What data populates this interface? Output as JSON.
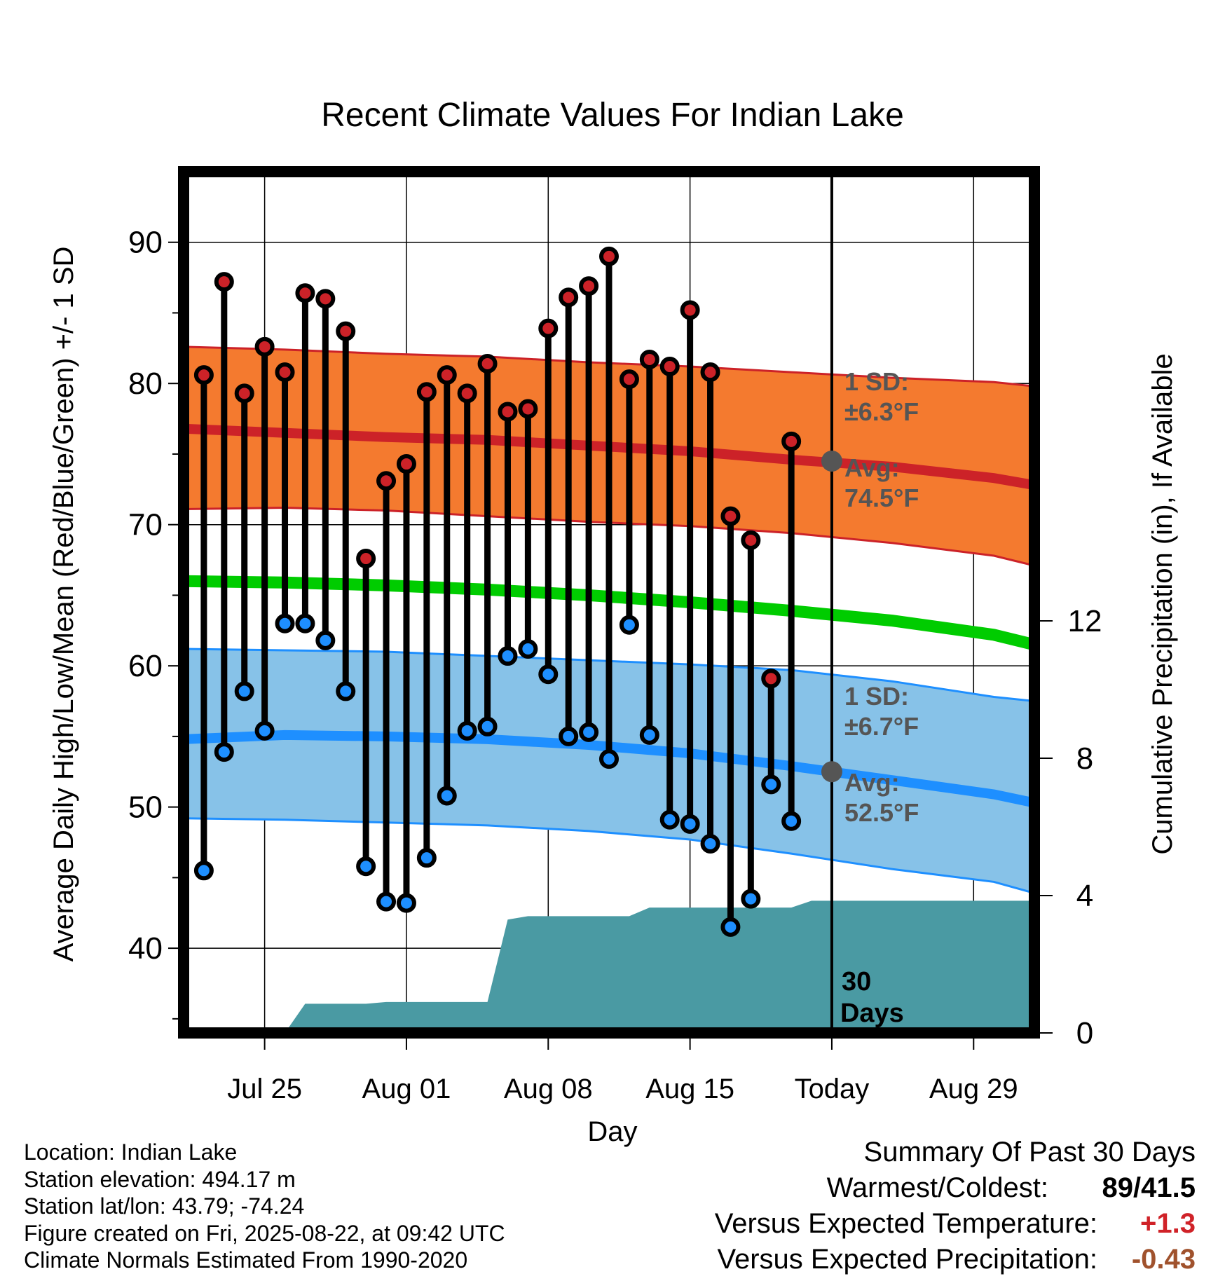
{
  "chart_data": {
    "type": "line",
    "title": "Recent Climate Values For Indian Lake",
    "xlabel": "Day",
    "ylabel": "Average Daily High/Low/Mean (Red/Blue/Green) +/- 1 SD",
    "y2label": "Cumulative Precipitation (in), If Available",
    "x_ticks": [
      "Jul 25",
      "Aug 01",
      "Aug 08",
      "Aug 15",
      "Today",
      "Aug 29"
    ],
    "x_range": [
      "2025-07-21",
      "2025-09-01"
    ],
    "ylim": [
      34,
      95
    ],
    "y_ticks": [
      40,
      50,
      60,
      70,
      80,
      90
    ],
    "y2_ticks": [
      0,
      4,
      8,
      12
    ],
    "today": "2025-08-22",
    "today_label": "30 Days",
    "grid": true,
    "colors": {
      "high": "#cc2228",
      "low": "#1e8fff",
      "mean": "#00cc00",
      "high_band": "#f47a2f",
      "low_band": "#87c2e8",
      "precip": "#4a9aa3",
      "avg_marker": "#555555"
    },
    "daily": {
      "dates": [
        "2025-07-22",
        "2025-07-23",
        "2025-07-24",
        "2025-07-25",
        "2025-07-26",
        "2025-07-27",
        "2025-07-28",
        "2025-07-29",
        "2025-07-30",
        "2025-07-31",
        "2025-08-01",
        "2025-08-02",
        "2025-08-03",
        "2025-08-04",
        "2025-08-05",
        "2025-08-06",
        "2025-08-07",
        "2025-08-08",
        "2025-08-09",
        "2025-08-10",
        "2025-08-11",
        "2025-08-12",
        "2025-08-13",
        "2025-08-14",
        "2025-08-15",
        "2025-08-16",
        "2025-08-17",
        "2025-08-18",
        "2025-08-19",
        "2025-08-20",
        "2025-08-21"
      ],
      "high": [
        80.6,
        87.2,
        79.3,
        82.6,
        80.8,
        86.4,
        86.0,
        83.7,
        67.6,
        73.1,
        74.3,
        79.4,
        80.6,
        79.3,
        81.4,
        78.0,
        78.2,
        83.9,
        86.1,
        86.9,
        89.0,
        80.3,
        81.7,
        81.2,
        85.2,
        80.8,
        70.6,
        68.9,
        59.1,
        75.9,
        null
      ],
      "low": [
        45.5,
        53.9,
        58.2,
        55.4,
        63.0,
        63.0,
        61.8,
        58.2,
        45.8,
        43.3,
        43.2,
        46.4,
        50.8,
        55.4,
        55.7,
        60.7,
        61.2,
        59.4,
        55.0,
        55.3,
        53.4,
        62.9,
        55.1,
        49.1,
        48.8,
        47.4,
        41.5,
        43.5,
        51.6,
        49.0,
        null
      ]
    },
    "normals": {
      "dates": [
        "2025-07-21",
        "2025-07-26",
        "2025-07-31",
        "2025-08-05",
        "2025-08-10",
        "2025-08-15",
        "2025-08-20",
        "2025-08-25",
        "2025-08-30",
        "2025-09-01"
      ],
      "avg_high": [
        76.8,
        76.5,
        76.2,
        76.0,
        75.6,
        75.2,
        74.6,
        74.1,
        73.3,
        72.8
      ],
      "high_plus_sd": [
        82.6,
        82.4,
        82.1,
        81.9,
        81.5,
        81.2,
        80.8,
        80.4,
        80.1,
        79.8
      ],
      "high_minus_sd": [
        71.1,
        71.2,
        71.0,
        70.6,
        70.2,
        69.9,
        69.4,
        68.7,
        67.8,
        67.1
      ],
      "avg_mean": [
        66.0,
        65.9,
        65.7,
        65.4,
        65.0,
        64.5,
        63.9,
        63.2,
        62.2,
        61.5
      ],
      "avg_low": [
        54.8,
        55.1,
        55.0,
        54.8,
        54.4,
        53.8,
        52.9,
        51.9,
        50.9,
        50.3
      ],
      "low_plus_sd": [
        61.2,
        61.1,
        61.0,
        60.7,
        60.4,
        60.1,
        59.7,
        58.9,
        57.8,
        57.5
      ],
      "low_minus_sd": [
        49.2,
        49.1,
        48.9,
        48.7,
        48.3,
        47.7,
        46.7,
        45.6,
        44.7,
        43.9
      ]
    },
    "precip": {
      "dates": [
        "2025-07-25",
        "2025-07-26",
        "2025-07-27",
        "2025-07-28",
        "2025-07-29",
        "2025-07-30",
        "2025-07-31",
        "2025-08-01",
        "2025-08-02",
        "2025-08-03",
        "2025-08-04",
        "2025-08-05",
        "2025-08-06",
        "2025-08-07",
        "2025-08-08",
        "2025-08-09",
        "2025-08-10",
        "2025-08-11",
        "2025-08-12",
        "2025-08-13",
        "2025-08-14",
        "2025-08-15",
        "2025-08-16",
        "2025-08-17",
        "2025-08-18",
        "2025-08-19",
        "2025-08-20",
        "2025-08-21",
        "2025-08-22",
        "2025-09-01"
      ],
      "cumulative_in": [
        0.0,
        0.0,
        0.85,
        0.85,
        0.85,
        0.85,
        0.9,
        0.9,
        0.9,
        0.9,
        0.9,
        0.9,
        3.3,
        3.4,
        3.4,
        3.4,
        3.4,
        3.4,
        3.4,
        3.65,
        3.65,
        3.65,
        3.65,
        3.65,
        3.65,
        3.65,
        3.65,
        3.85,
        3.85,
        3.85
      ]
    },
    "annotations": {
      "high_sd": "1 SD:",
      "high_sd_value": "±6.3°F",
      "high_avg": "Avg:",
      "high_avg_value": "74.5°F",
      "low_sd": "1 SD:",
      "low_sd_value": "±6.7°F",
      "low_avg": "Avg:",
      "low_avg_value": "52.5°F",
      "today_high_avg": 74.5,
      "today_low_avg": 52.5
    }
  },
  "footer": {
    "location": "Location: Indian Lake",
    "elevation": "Station elevation: 494.17 m",
    "latlon": "Station lat/lon: 43.79; -74.24",
    "created": "Figure created on Fri, 2025-08-22, at 09:42 UTC",
    "normals": "Climate Normals Estimated From 1990-2020"
  },
  "summary": {
    "title": "Summary Of Past 30 Days",
    "warmest_label": "Warmest/Coldest:",
    "warmest_value": "89/41.5",
    "temp_label": "Versus Expected Temperature:",
    "temp_value": "+1.3",
    "temp_color": "#d02228",
    "precip_label": "Versus Expected Precipitation:",
    "precip_value": "-0.43",
    "precip_color": "#a0522d"
  }
}
